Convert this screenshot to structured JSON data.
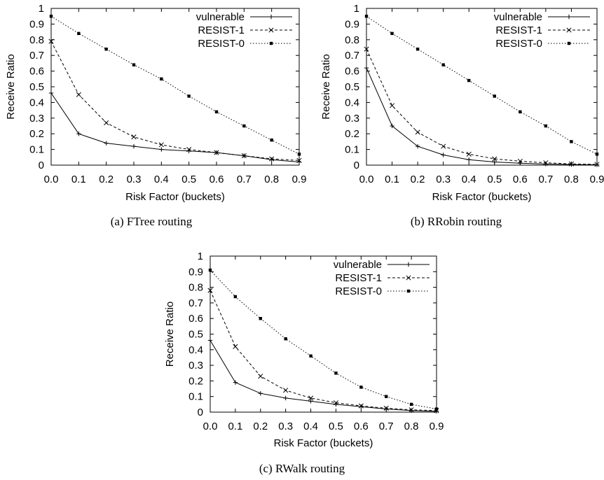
{
  "chart_data": [
    {
      "type": "line",
      "caption": "(a)  FTree routing",
      "xlabel": "Risk Factor (buckets)",
      "ylabel": "Receive Ratio",
      "xlim": [
        0,
        0.9
      ],
      "ylim": [
        0,
        1
      ],
      "x_ticks": [
        "0.0",
        "0.1",
        "0.2",
        "0.3",
        "0.4",
        "0.5",
        "0.6",
        "0.7",
        "0.8",
        "0.9"
      ],
      "y_ticks": [
        "0",
        "0.1",
        "0.2",
        "0.3",
        "0.4",
        "0.5",
        "0.6",
        "0.7",
        "0.8",
        "0.9",
        "1"
      ],
      "legend_position": "top-right",
      "x": [
        0.0,
        0.1,
        0.2,
        0.3,
        0.4,
        0.5,
        0.6,
        0.7,
        0.8,
        0.9
      ],
      "series": [
        {
          "name": "vulnerable",
          "marker": "plus",
          "dash": "solid",
          "values": [
            0.46,
            0.2,
            0.14,
            0.12,
            0.1,
            0.09,
            0.08,
            0.06,
            0.035,
            0.02
          ]
        },
        {
          "name": "RESIST-1",
          "marker": "cross",
          "dash": "dashed",
          "values": [
            0.79,
            0.45,
            0.27,
            0.18,
            0.13,
            0.1,
            0.08,
            0.06,
            0.04,
            0.03
          ]
        },
        {
          "name": "RESIST-0",
          "marker": "square",
          "dash": "dotted",
          "values": [
            0.95,
            0.84,
            0.74,
            0.64,
            0.55,
            0.44,
            0.34,
            0.25,
            0.16,
            0.07
          ]
        }
      ]
    },
    {
      "type": "line",
      "caption": "(b)  RRobin routing",
      "xlabel": "Risk Factor (buckets)",
      "ylabel": "Receive Ratio",
      "xlim": [
        0,
        0.9
      ],
      "ylim": [
        0,
        1
      ],
      "x_ticks": [
        "0.0",
        "0.1",
        "0.2",
        "0.3",
        "0.4",
        "0.5",
        "0.6",
        "0.7",
        "0.8",
        "0.9"
      ],
      "y_ticks": [
        "0",
        "0.1",
        "0.2",
        "0.3",
        "0.4",
        "0.5",
        "0.6",
        "0.7",
        "0.8",
        "0.9",
        "1"
      ],
      "legend_position": "top-right",
      "x": [
        0.0,
        0.1,
        0.2,
        0.3,
        0.4,
        0.5,
        0.6,
        0.7,
        0.8,
        0.9
      ],
      "series": [
        {
          "name": "vulnerable",
          "marker": "plus",
          "dash": "solid",
          "values": [
            0.62,
            0.25,
            0.12,
            0.065,
            0.035,
            0.02,
            0.012,
            0.007,
            0.004,
            0.002
          ]
        },
        {
          "name": "RESIST-1",
          "marker": "cross",
          "dash": "dashed",
          "values": [
            0.74,
            0.38,
            0.21,
            0.12,
            0.07,
            0.04,
            0.025,
            0.015,
            0.008,
            0.005
          ]
        },
        {
          "name": "RESIST-0",
          "marker": "square",
          "dash": "dotted",
          "values": [
            0.95,
            0.84,
            0.74,
            0.64,
            0.54,
            0.44,
            0.34,
            0.25,
            0.15,
            0.07
          ]
        }
      ]
    },
    {
      "type": "line",
      "caption": "(c)  RWalk routing",
      "xlabel": "Risk Factor (buckets)",
      "ylabel": "Receive Ratio",
      "xlim": [
        0,
        0.9
      ],
      "ylim": [
        0,
        1
      ],
      "x_ticks": [
        "0.0",
        "0.1",
        "0.2",
        "0.3",
        "0.4",
        "0.5",
        "0.6",
        "0.7",
        "0.8",
        "0.9"
      ],
      "y_ticks": [
        "0",
        "0.1",
        "0.2",
        "0.3",
        "0.4",
        "0.5",
        "0.6",
        "0.7",
        "0.8",
        "0.9",
        "1"
      ],
      "legend_position": "top-right",
      "x": [
        0.0,
        0.1,
        0.2,
        0.3,
        0.4,
        0.5,
        0.6,
        0.7,
        0.8,
        0.9
      ],
      "series": [
        {
          "name": "vulnerable",
          "marker": "plus",
          "dash": "solid",
          "values": [
            0.46,
            0.19,
            0.12,
            0.09,
            0.07,
            0.05,
            0.035,
            0.02,
            0.01,
            0.005
          ]
        },
        {
          "name": "RESIST-1",
          "marker": "cross",
          "dash": "dashed",
          "values": [
            0.78,
            0.42,
            0.23,
            0.14,
            0.09,
            0.06,
            0.04,
            0.025,
            0.015,
            0.01
          ]
        },
        {
          "name": "RESIST-0",
          "marker": "square",
          "dash": "dotted",
          "values": [
            0.91,
            0.74,
            0.6,
            0.47,
            0.36,
            0.25,
            0.16,
            0.1,
            0.05,
            0.02
          ]
        }
      ]
    }
  ]
}
